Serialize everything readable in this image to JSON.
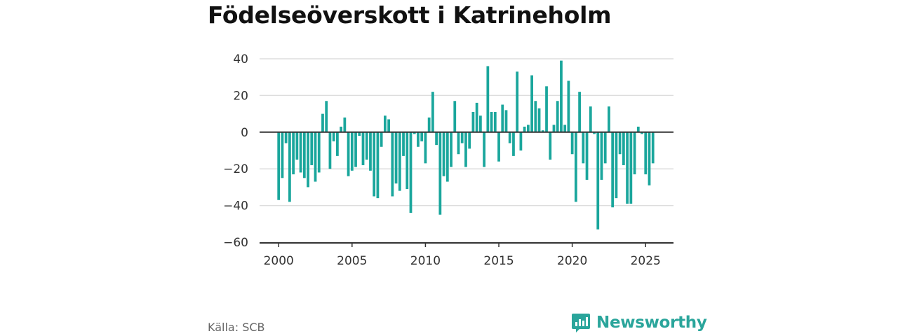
{
  "title": "Födelseöverskott i Katrineholm",
  "source": "Källa: SCB",
  "brand": {
    "name": "Newsworthy",
    "icon": "newsworthy-logo-icon"
  },
  "colors": {
    "bar": "#1aa69c",
    "grid": "#dddddd",
    "zero": "#333333",
    "axis": "#333333"
  },
  "chart_data": {
    "type": "bar",
    "title": "Födelseöverskott i Katrineholm",
    "xlabel": "",
    "ylabel": "",
    "ylim": [
      -60,
      40
    ],
    "xlim": [
      1998.7,
      2026.9
    ],
    "grid": true,
    "y_ticks": [
      40,
      20,
      0,
      -20,
      -40,
      -60
    ],
    "y_tick_labels": [
      "40",
      "20",
      "0",
      "−20",
      "−40",
      "−60"
    ],
    "x_ticks": [
      2000,
      2005,
      2010,
      2015,
      2020,
      2025
    ],
    "x_tick_labels": [
      "2000",
      "2005",
      "2010",
      "2015",
      "2020",
      "2025"
    ],
    "x_start": 2000.0,
    "x_step": 0.25,
    "series": [
      {
        "values": [
          -37,
          -25,
          -6,
          -38,
          -23,
          -15,
          -22,
          -25,
          -30,
          -18,
          -27,
          -22,
          10,
          17,
          -20,
          -5,
          -13,
          3,
          8,
          -24,
          -21,
          -19,
          -2,
          -18,
          -15,
          -21,
          -35,
          -36,
          -8,
          9,
          7,
          -35,
          -28,
          -32,
          -13,
          -31,
          -44,
          -1,
          -8,
          -5,
          -17,
          8,
          22,
          -7,
          -45,
          -24,
          -27,
          -19,
          17,
          -12,
          -6,
          -19,
          -9,
          11,
          16,
          9,
          -19,
          36,
          11,
          11,
          -16,
          15,
          12,
          -6,
          -13,
          33,
          -10,
          3,
          4,
          31,
          17,
          13,
          1,
          25,
          -15,
          4,
          17,
          39,
          4,
          28,
          -12,
          -38,
          22,
          -17,
          -26,
          14,
          -1,
          -53,
          -26,
          -17,
          14,
          -41,
          -36,
          -12,
          -18,
          -39,
          -39,
          -23,
          3,
          -1,
          -23,
          -29,
          -17
        ]
      }
    ]
  }
}
